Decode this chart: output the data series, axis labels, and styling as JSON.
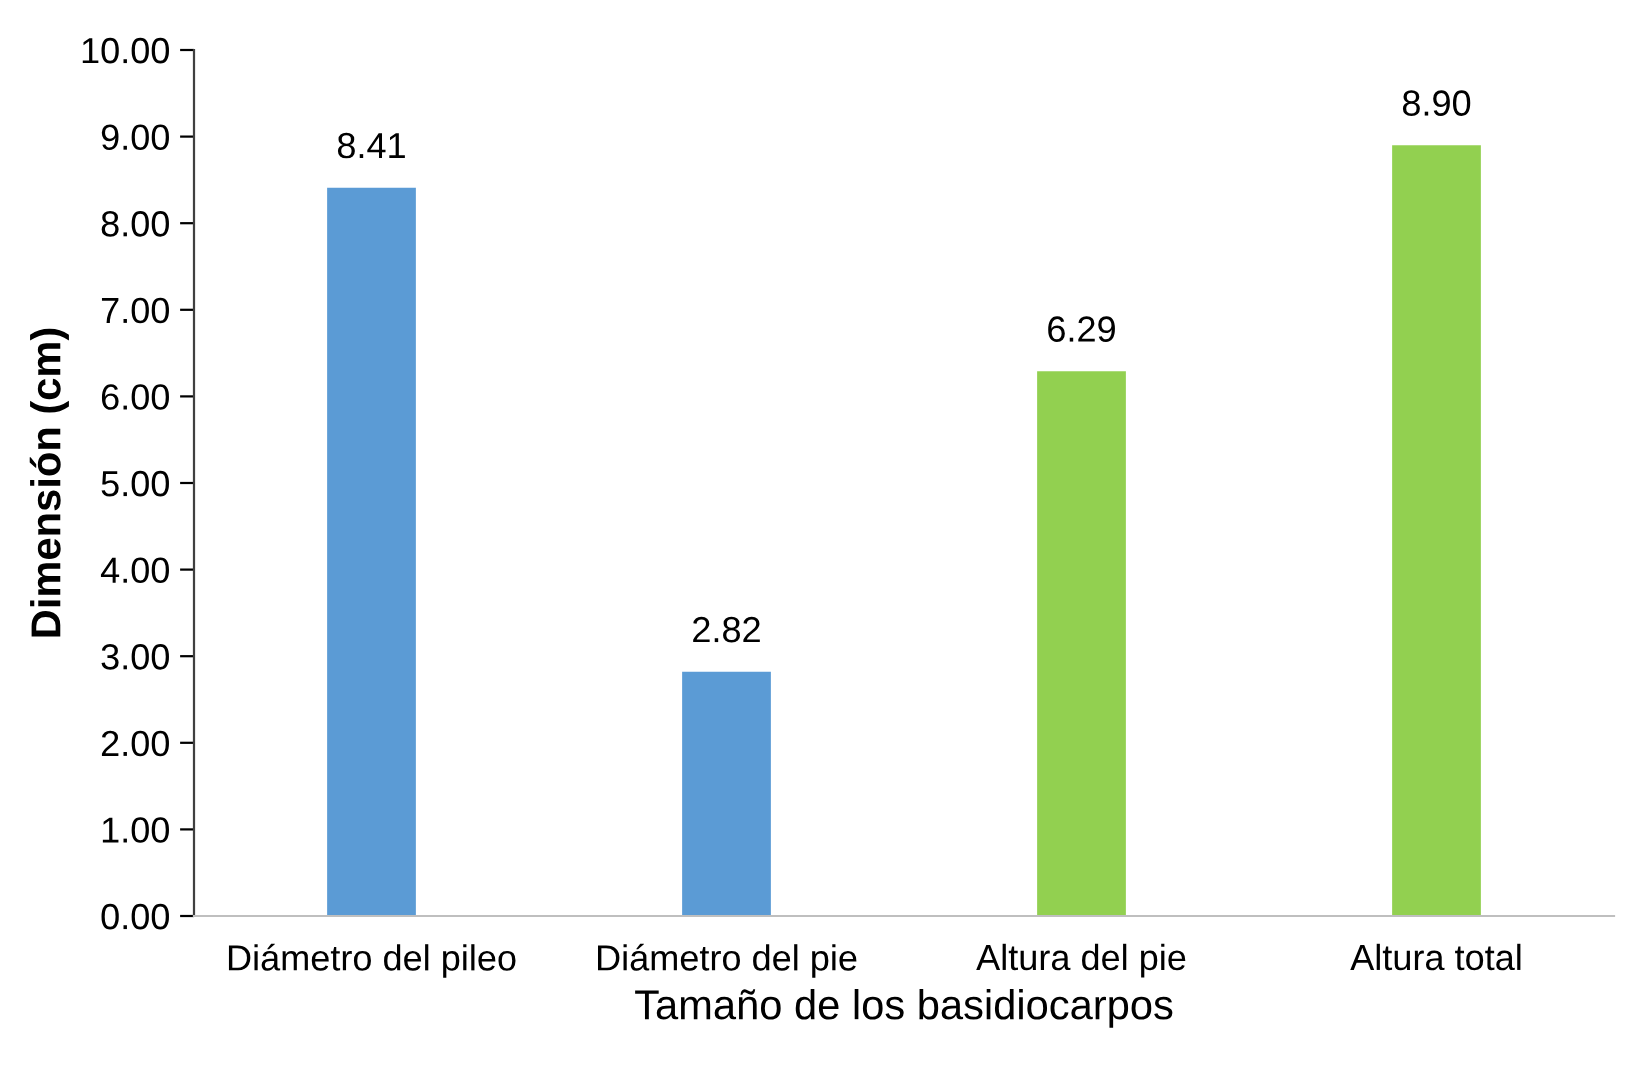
{
  "chart_data": {
    "type": "bar",
    "xlabel": "Tamaño de los basidiocarpos",
    "ylabel": "Dimensión (cm)",
    "categories": [
      "Diámetro del pileo",
      "Diámetro del pie",
      "Altura del pie",
      "Altura total"
    ],
    "values": [
      8.41,
      2.82,
      6.29,
      8.9
    ],
    "colors": [
      "#5b9bd5",
      "#5b9bd5",
      "#92d050",
      "#92d050"
    ],
    "value_labels": [
      "8.41",
      "2.82",
      "6.29",
      "8.90"
    ],
    "ylim": [
      0,
      10
    ],
    "yticks": [
      {
        "value": 0,
        "label": "0.00"
      },
      {
        "value": 1,
        "label": "1.00"
      },
      {
        "value": 2,
        "label": "2.00"
      },
      {
        "value": 3,
        "label": "3.00"
      },
      {
        "value": 4,
        "label": "4.00"
      },
      {
        "value": 5,
        "label": "5.00"
      },
      {
        "value": 6,
        "label": "6.00"
      },
      {
        "value": 7,
        "label": "7.00"
      },
      {
        "value": 8,
        "label": "8.00"
      },
      {
        "value": 9,
        "label": "9.00"
      },
      {
        "value": 10,
        "label": "10.00"
      }
    ],
    "grid": false,
    "legend": false
  }
}
